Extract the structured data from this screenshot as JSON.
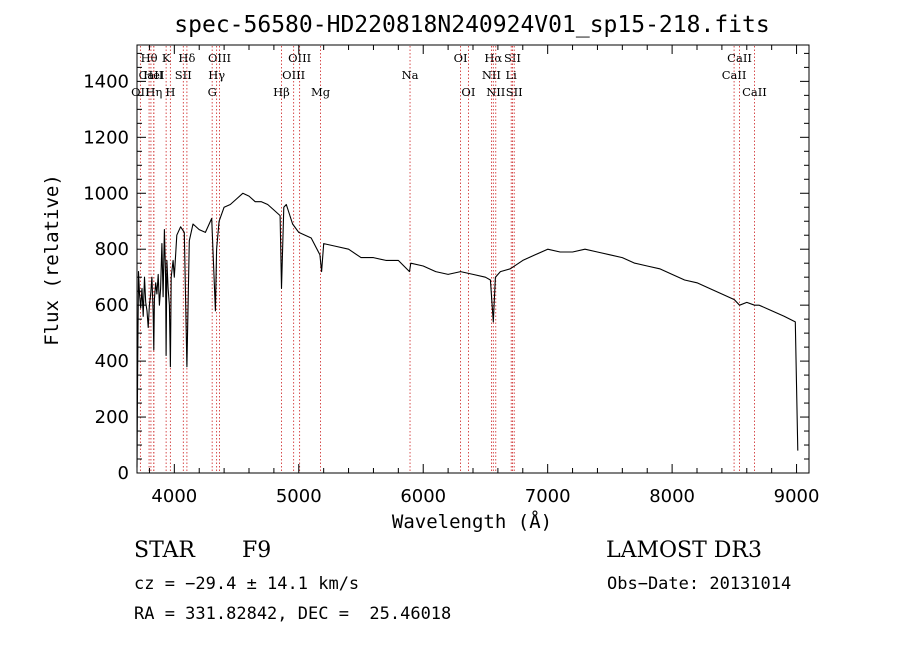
{
  "chart_data": {
    "type": "line",
    "title": "spec-56580-HD220818N240924V01_sp15-218.fits",
    "xlabel": "Wavelength (Å)",
    "ylabel": "Flux (relative)",
    "xlim": [
      3700,
      9100
    ],
    "ylim": [
      0,
      1530
    ],
    "xticks": [
      4000,
      5000,
      6000,
      7000,
      8000,
      9000
    ],
    "yticks": [
      0,
      200,
      400,
      600,
      800,
      1000,
      1200,
      1400
    ],
    "series": [
      {
        "name": "spectrum",
        "x": [
          3700,
          3705,
          3712,
          3720,
          3730,
          3740,
          3750,
          3760,
          3770,
          3780,
          3790,
          3800,
          3810,
          3820,
          3830,
          3835,
          3840,
          3850,
          3860,
          3870,
          3880,
          3890,
          3900,
          3910,
          3920,
          3930,
          3934,
          3940,
          3950,
          3960,
          3968,
          3975,
          3990,
          4000,
          4020,
          4050,
          4080,
          4101,
          4120,
          4150,
          4200,
          4250,
          4300,
          4330,
          4340,
          4360,
          4400,
          4450,
          4500,
          4550,
          4600,
          4650,
          4700,
          4750,
          4800,
          4850,
          4861,
          4880,
          4900,
          4950,
          5000,
          5100,
          5170,
          5183,
          5200,
          5300,
          5400,
          5500,
          5600,
          5700,
          5800,
          5890,
          5900,
          6000,
          6100,
          6200,
          6300,
          6400,
          6500,
          6540,
          6563,
          6580,
          6620,
          6700,
          6800,
          6900,
          7000,
          7100,
          7200,
          7300,
          7400,
          7500,
          7600,
          7700,
          7800,
          7900,
          8000,
          8100,
          8200,
          8300,
          8400,
          8500,
          8542,
          8600,
          8662,
          8700,
          8800,
          8900,
          8990,
          9000,
          9010
        ],
        "y": [
          20,
          350,
          720,
          640,
          590,
          660,
          560,
          700,
          610,
          580,
          520,
          600,
          640,
          700,
          570,
          440,
          620,
          680,
          640,
          710,
          600,
          660,
          820,
          630,
          870,
          700,
          420,
          760,
          660,
          600,
          380,
          700,
          760,
          700,
          850,
          880,
          860,
          380,
          830,
          890,
          870,
          860,
          910,
          580,
          800,
          900,
          950,
          960,
          980,
          1000,
          990,
          970,
          970,
          960,
          940,
          920,
          660,
          950,
          960,
          890,
          860,
          840,
          780,
          720,
          820,
          810,
          800,
          770,
          770,
          760,
          760,
          720,
          750,
          740,
          720,
          710,
          720,
          710,
          700,
          690,
          540,
          700,
          720,
          730,
          760,
          780,
          800,
          790,
          790,
          800,
          790,
          780,
          770,
          750,
          740,
          730,
          710,
          690,
          680,
          660,
          640,
          620,
          600,
          610,
          600,
          600,
          580,
          560,
          540,
          300,
          80
        ]
      }
    ],
    "line_markers": [
      {
        "label": "Hθ",
        "x": 3797,
        "row": 1
      },
      {
        "label": "CaII",
        "x": 3812,
        "row": 2
      },
      {
        "label": "OII",
        "x": 3727,
        "row": 3
      },
      {
        "label": "HeI",
        "x": 3835,
        "row": 2
      },
      {
        "label": "Hη",
        "x": 3835,
        "row": 3
      },
      {
        "label": "K",
        "x": 3934,
        "row": 1
      },
      {
        "label": "H",
        "x": 3968,
        "row": 3
      },
      {
        "label": "Hδ",
        "x": 4101,
        "row": 1
      },
      {
        "label": "SII",
        "x": 4072,
        "row": 2
      },
      {
        "label": "OIII",
        "x": 4363,
        "row": 1
      },
      {
        "label": "Hγ",
        "x": 4340,
        "row": 2
      },
      {
        "label": "G",
        "x": 4304,
        "row": 3
      },
      {
        "label": "Hβ",
        "x": 4861,
        "row": 3
      },
      {
        "label": "OIII",
        "x": 5007,
        "row": 1
      },
      {
        "label": "OIII",
        "x": 4959,
        "row": 2
      },
      {
        "label": "Mg",
        "x": 5175,
        "row": 3
      },
      {
        "label": "Na",
        "x": 5894,
        "row": 2
      },
      {
        "label": "OI",
        "x": 6300,
        "row": 1
      },
      {
        "label": "OI",
        "x": 6363,
        "row": 3
      },
      {
        "label": "Hα",
        "x": 6563,
        "row": 1
      },
      {
        "label": "NII",
        "x": 6548,
        "row": 2
      },
      {
        "label": "NII",
        "x": 6583,
        "row": 3
      },
      {
        "label": "SII",
        "x": 6717,
        "row": 1
      },
      {
        "label": "Li",
        "x": 6707,
        "row": 2
      },
      {
        "label": "SII",
        "x": 6731,
        "row": 3
      },
      {
        "label": "CaII",
        "x": 8542,
        "row": 1
      },
      {
        "label": "CaII",
        "x": 8498,
        "row": 2
      },
      {
        "label": "CaII",
        "x": 8662,
        "row": 3
      }
    ]
  },
  "info": {
    "object_class": "STAR",
    "subclass": "F9",
    "survey": "LAMOST DR3",
    "cz": "cz = −29.4 ± 14.1 km/s",
    "obs_date": "Obs−Date: 20131014",
    "coords": "RA = 331.82842, DEC =  25.46018"
  },
  "colors": {
    "line_marker": "#cc2222",
    "spectrum": "#000000",
    "axes": "#000000"
  }
}
